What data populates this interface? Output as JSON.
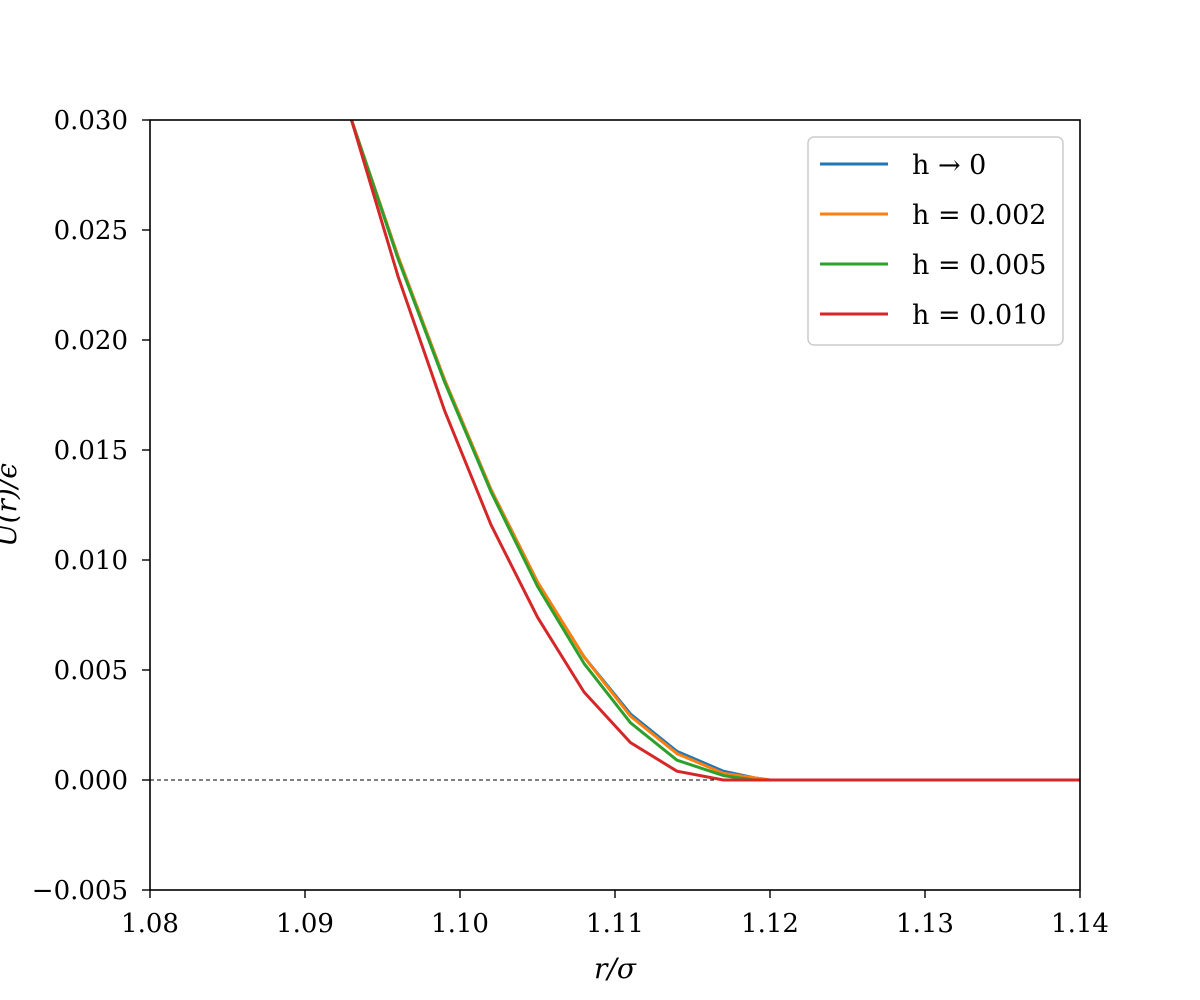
{
  "chart_data": {
    "type": "line",
    "xlabel": "r/σ",
    "ylabel": "U(r)/ϵ",
    "xlim": [
      1.08,
      1.14
    ],
    "ylim": [
      -0.005,
      0.03
    ],
    "xticks": [
      "1.08",
      "1.09",
      "1.10",
      "1.11",
      "1.12",
      "1.13",
      "1.14"
    ],
    "yticks": [
      "−0.005",
      "0.000",
      "0.005",
      "0.010",
      "0.015",
      "0.020",
      "0.025",
      "0.030"
    ],
    "grid": false,
    "legend_position": "top-right",
    "reference_line": {
      "y": 0.0,
      "style": "dashed",
      "color": "#000000"
    },
    "x": [
      1.093,
      1.096,
      1.099,
      1.102,
      1.105,
      1.108,
      1.111,
      1.114,
      1.117,
      1.119,
      1.12,
      1.122,
      1.125,
      1.13,
      1.14
    ],
    "series": [
      {
        "name": "h → 0",
        "color": "#1f77b4",
        "values": [
          0.03,
          0.0238,
          0.0182,
          0.0132,
          0.009,
          0.0056,
          0.003,
          0.0013,
          0.0004,
          0.0001,
          0.0,
          0.0,
          0.0,
          0.0,
          0.0
        ]
      },
      {
        "name": "h = 0.002",
        "color": "#ff7f0e",
        "values": [
          0.03,
          0.0238,
          0.0182,
          0.0132,
          0.009,
          0.0056,
          0.0029,
          0.0012,
          0.0003,
          0.0001,
          0.0,
          0.0,
          0.0,
          0.0,
          0.0
        ]
      },
      {
        "name": "h = 0.005",
        "color": "#2ca02c",
        "values": [
          0.03,
          0.0237,
          0.0181,
          0.0131,
          0.0088,
          0.0053,
          0.0026,
          0.0009,
          0.0002,
          0.0,
          0.0,
          0.0,
          0.0,
          0.0,
          0.0
        ]
      },
      {
        "name": "h = 0.010",
        "color": "#d62728",
        "values": [
          0.03,
          0.0229,
          0.0168,
          0.0116,
          0.0074,
          0.004,
          0.0017,
          0.0004,
          0.0,
          0.0,
          0.0,
          0.0,
          0.0,
          0.0,
          0.0
        ]
      }
    ]
  }
}
